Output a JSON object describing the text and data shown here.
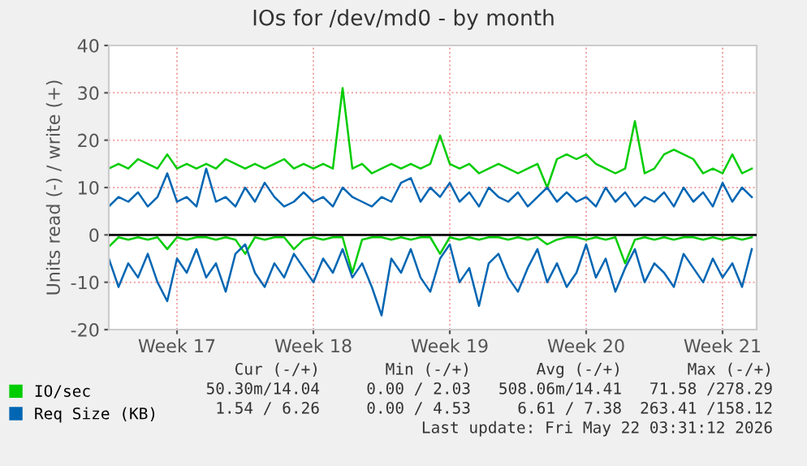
{
  "chart_data": {
    "type": "line",
    "title": "IOs for /dev/md0 - by month",
    "ylabel": "Units read (-) / write (+)",
    "categories": [
      null,
      null,
      null,
      null,
      null,
      null,
      null,
      "Week 17",
      null,
      null,
      null,
      null,
      null,
      null,
      null,
      null,
      null,
      null,
      null,
      null,
      null,
      "Week 18",
      null,
      null,
      null,
      null,
      null,
      null,
      null,
      null,
      null,
      null,
      null,
      null,
      null,
      "Week 19",
      null,
      null,
      null,
      null,
      null,
      null,
      null,
      null,
      null,
      null,
      null,
      null,
      null,
      "Week 20",
      null,
      null,
      null,
      null,
      null,
      null,
      null,
      null,
      null,
      null,
      null,
      null,
      null,
      "Week 21",
      null,
      null,
      null
    ],
    "series": [
      {
        "name": "IO/sec",
        "color": "#00cc00",
        "values": [
          14,
          15,
          14,
          16,
          15,
          14,
          17,
          14,
          15,
          14,
          15,
          14,
          16,
          15,
          14,
          15,
          14,
          15,
          16,
          14,
          15,
          14,
          15,
          14,
          31,
          14,
          15,
          13,
          14,
          15,
          14,
          15,
          14,
          15,
          21,
          15,
          14,
          15,
          13,
          14,
          15,
          14,
          13,
          14,
          15,
          10,
          16,
          17,
          16,
          17,
          15,
          14,
          13,
          14,
          24,
          13,
          14,
          17,
          18,
          17,
          16,
          13,
          14,
          13,
          17,
          13,
          14
        ]
      },
      {
        "color": "#00cc00",
        "values": [
          -2.5,
          -0.5,
          -1,
          -0.5,
          -1,
          -0.5,
          -3,
          -0.5,
          -1,
          -0.5,
          -0.5,
          -1,
          -0.5,
          -1,
          -4,
          -0.5,
          -1,
          -0.5,
          -0.5,
          -3,
          -1,
          -0.5,
          -1,
          -0.5,
          -0.5,
          -8,
          -1,
          -0.5,
          -0.5,
          -1,
          -0.5,
          -1,
          -0.5,
          -0.5,
          -4,
          -0.5,
          -1,
          -0.5,
          -1,
          -0.5,
          -0.5,
          -1,
          -0.5,
          -1,
          -0.5,
          -2,
          -1,
          -0.5,
          -0.5,
          -1,
          -0.5,
          -1,
          -0.5,
          -6,
          -1,
          -0.5,
          -1,
          -0.5,
          -1,
          -0.5,
          -0.5,
          -1,
          -0.5,
          -1,
          -0.5,
          -1,
          -0.5
        ]
      },
      {
        "name": "Req Size (KB)",
        "color": "#0066b3",
        "values": [
          6,
          8,
          7,
          9,
          6,
          8,
          13,
          7,
          8,
          6,
          14,
          7,
          8,
          6,
          10,
          7,
          11,
          8,
          6,
          7,
          9,
          7,
          8,
          6,
          10,
          8,
          7,
          6,
          8,
          7,
          11,
          12,
          7,
          10,
          8,
          11,
          7,
          9,
          6,
          10,
          8,
          7,
          9,
          6,
          8,
          10,
          7,
          9,
          7,
          8,
          6,
          10,
          7,
          9,
          6,
          8,
          7,
          9,
          6,
          10,
          7,
          9,
          6,
          11,
          7,
          10,
          8
        ]
      },
      {
        "color": "#0066b3",
        "values": [
          -5,
          -11,
          -6,
          -9,
          -4,
          -10,
          -14,
          -5,
          -8,
          -3,
          -9,
          -6,
          -12,
          -4,
          -2,
          -8,
          -11,
          -6,
          -9,
          -4,
          -7,
          -10,
          -5,
          -8,
          -3,
          -9,
          -6,
          -11,
          -17,
          -5,
          -8,
          -3,
          -9,
          -12,
          -5,
          -2,
          -10,
          -7,
          -15,
          -6,
          -4,
          -9,
          -12,
          -7,
          -3,
          -10,
          -6,
          -11,
          -8,
          -2,
          -9,
          -5,
          -12,
          -7,
          -3,
          -10,
          -6,
          -8,
          -11,
          -4,
          -7,
          -10,
          -5,
          -9,
          -6,
          -11,
          -3
        ]
      }
    ],
    "ylim": [
      -20,
      40
    ],
    "yticks": [
      -20,
      -10,
      0,
      10,
      20,
      30,
      40
    ],
    "ref_lines": [
      {
        "axis": "y",
        "value": 0,
        "color": "#000000"
      }
    ],
    "grid": true,
    "legend": "bottom left",
    "marker": "none",
    "line_style": "solid",
    "annotations": [
      "Cur (-/+)",
      "Min (-/+)",
      "Avg (-/+)",
      "Max (-/+)",
      "50.30m/14.04",
      "0.00 / 2.03",
      "508.06m/14.41",
      "71.58 /278.29",
      "1.54 / 6.26",
      "0.00 / 4.53",
      "6.61 / 7.38",
      "263.41 /158.12",
      "Last update: Fri May 22 03:31:12 2026"
    ]
  }
}
